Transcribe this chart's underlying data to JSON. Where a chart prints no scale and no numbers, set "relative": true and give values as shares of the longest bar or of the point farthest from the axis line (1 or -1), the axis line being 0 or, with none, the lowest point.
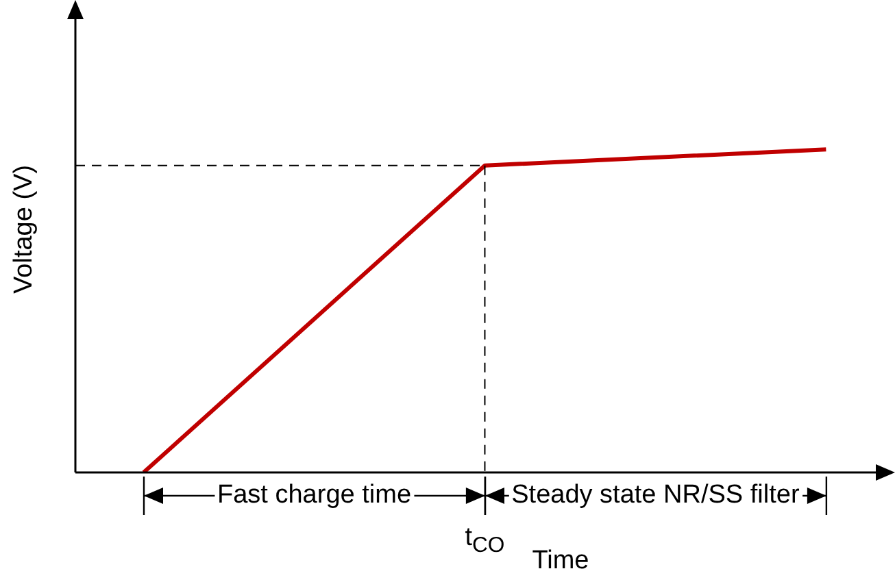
{
  "chart_data": {
    "type": "line",
    "relative": true,
    "xlabel": "Time",
    "ylabel": "Voltage (V)",
    "categories": [
      null,
      null,
      null
    ],
    "series": [
      {
        "color": "#c00000",
        "values": [
          0,
          0.95,
          1
        ]
      }
    ],
    "ref_lines": [
      {
        "axis": "y",
        "value": 0.95,
        "color": "#000000",
        "line_style": "dashed"
      }
    ],
    "annotations": [
      "Fast charge time",
      "Steady state NR/SS filter",
      "t$_{CO}$"
    ],
    "legend": false,
    "marker": "none",
    "line_style": "solid"
  }
}
